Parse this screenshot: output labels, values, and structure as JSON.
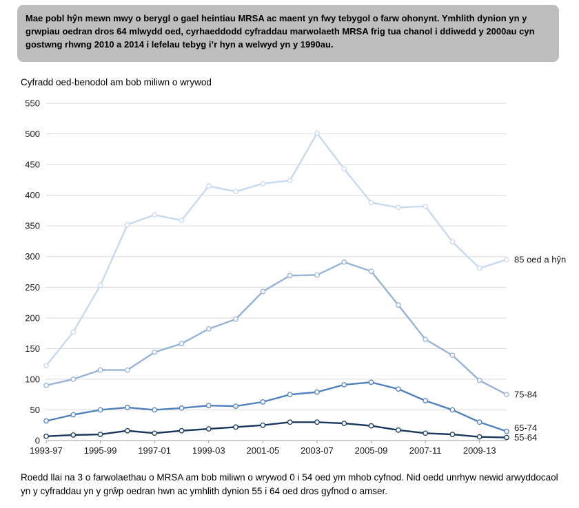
{
  "header": {
    "text": "Mae pobl hŷn mewn mwy o berygl o gael heintiau MRSA ac maent yn fwy tebygol o farw ohonynt. Ymhlith dynion yn y grwpiau oedran dros 64 mlwydd oed, cyrhaeddodd cyfraddau marwolaeth MRSA frig tua chanol i ddiwedd y 2000au cyn gostwng rhwng 2010 a 2014 i lefelau tebyg i’r hyn a welwyd yn y 1990au."
  },
  "chart_data": {
    "type": "line",
    "title": "",
    "ylabel": "Cyfradd oed-benodol am bob miliwn o wrywod",
    "xlabel": "",
    "ylim": [
      0,
      550
    ],
    "ytick_step": 50,
    "grid": true,
    "x_tick_every": 2,
    "legend_position": "right-of-line-ends",
    "x": [
      "1993-97",
      "1994-98",
      "1995-99",
      "1996-00",
      "1997-01",
      "1998-02",
      "1999-03",
      "2000-04",
      "2001-05",
      "2002-06",
      "2003-07",
      "2004-08",
      "2005-09",
      "2006-10",
      "2007-11",
      "2008-12",
      "2009-13",
      "2010-14"
    ],
    "series": [
      {
        "name": "85 oed a hŷn",
        "color": "#c6d9f1",
        "values": [
          122,
          177,
          253,
          352,
          368,
          359,
          415,
          406,
          419,
          424,
          501,
          443,
          388,
          380,
          382,
          324,
          281,
          295
        ]
      },
      {
        "name": "75-84",
        "color": "#95b3d7",
        "values": [
          90,
          100,
          115,
          115,
          144,
          158,
          182,
          198,
          243,
          269,
          270,
          291,
          276,
          221,
          165,
          139,
          98,
          75
        ]
      },
      {
        "name": "65-74",
        "color": "#4f81bd",
        "values": [
          32,
          42,
          50,
          54,
          50,
          53,
          57,
          56,
          63,
          75,
          79,
          91,
          95,
          84,
          65,
          50,
          30,
          15
        ]
      },
      {
        "name": "55-64",
        "color": "#17375e",
        "values": [
          7,
          9,
          10,
          16,
          12,
          16,
          19,
          22,
          25,
          30,
          30,
          28,
          24,
          17,
          12,
          10,
          6,
          5
        ]
      }
    ],
    "colors": {
      "gridline": "#d9d9d9",
      "axis": "#9b9b9b",
      "marker_fill": "#ffffff",
      "tick_text": "#1a1a1a"
    }
  },
  "footer": {
    "text": "Roedd llai na 3 o farwolaethau o MRSA am bob miliwn o wrywod 0 i 54 oed ym mhob cyfnod. Nid oedd unrhyw newid arwyddocaol yn y cyfraddau yn y grŵp oedran hwn ac ymhlith dynion 55 i 64 oed dros gyfnod o amser."
  }
}
